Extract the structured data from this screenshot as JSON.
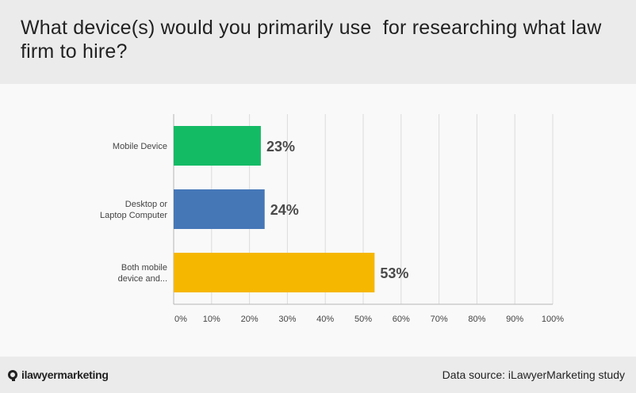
{
  "header": {
    "title": "What device(s) would you primarily use  for researching what law firm to hire?"
  },
  "footer": {
    "brand": "ilawyermarketing",
    "source": "Data source: iLawyerMarketing study"
  },
  "colors": {
    "mobile": "#14bb65",
    "desktop": "#4577b7",
    "both": "#f6b700",
    "grid": "#dcdcdc",
    "axis": "#b5b5b5"
  },
  "chart_data": {
    "type": "bar",
    "orientation": "horizontal",
    "title": "What device(s) would you primarily use  for researching what law firm to hire?",
    "categories": [
      "Mobile Device",
      "Desktop or\nLaptop Computer",
      "Both mobile\ndevice and..."
    ],
    "values": [
      23,
      24,
      53
    ],
    "data_labels": [
      "23%",
      "24%",
      "53%"
    ],
    "xlim": [
      0,
      100
    ],
    "xticks": [
      "0%",
      "10%",
      "20%",
      "30%",
      "40%",
      "50%",
      "60%",
      "70%",
      "80%",
      "90%",
      "100%"
    ],
    "grid": true,
    "legend": "none"
  }
}
